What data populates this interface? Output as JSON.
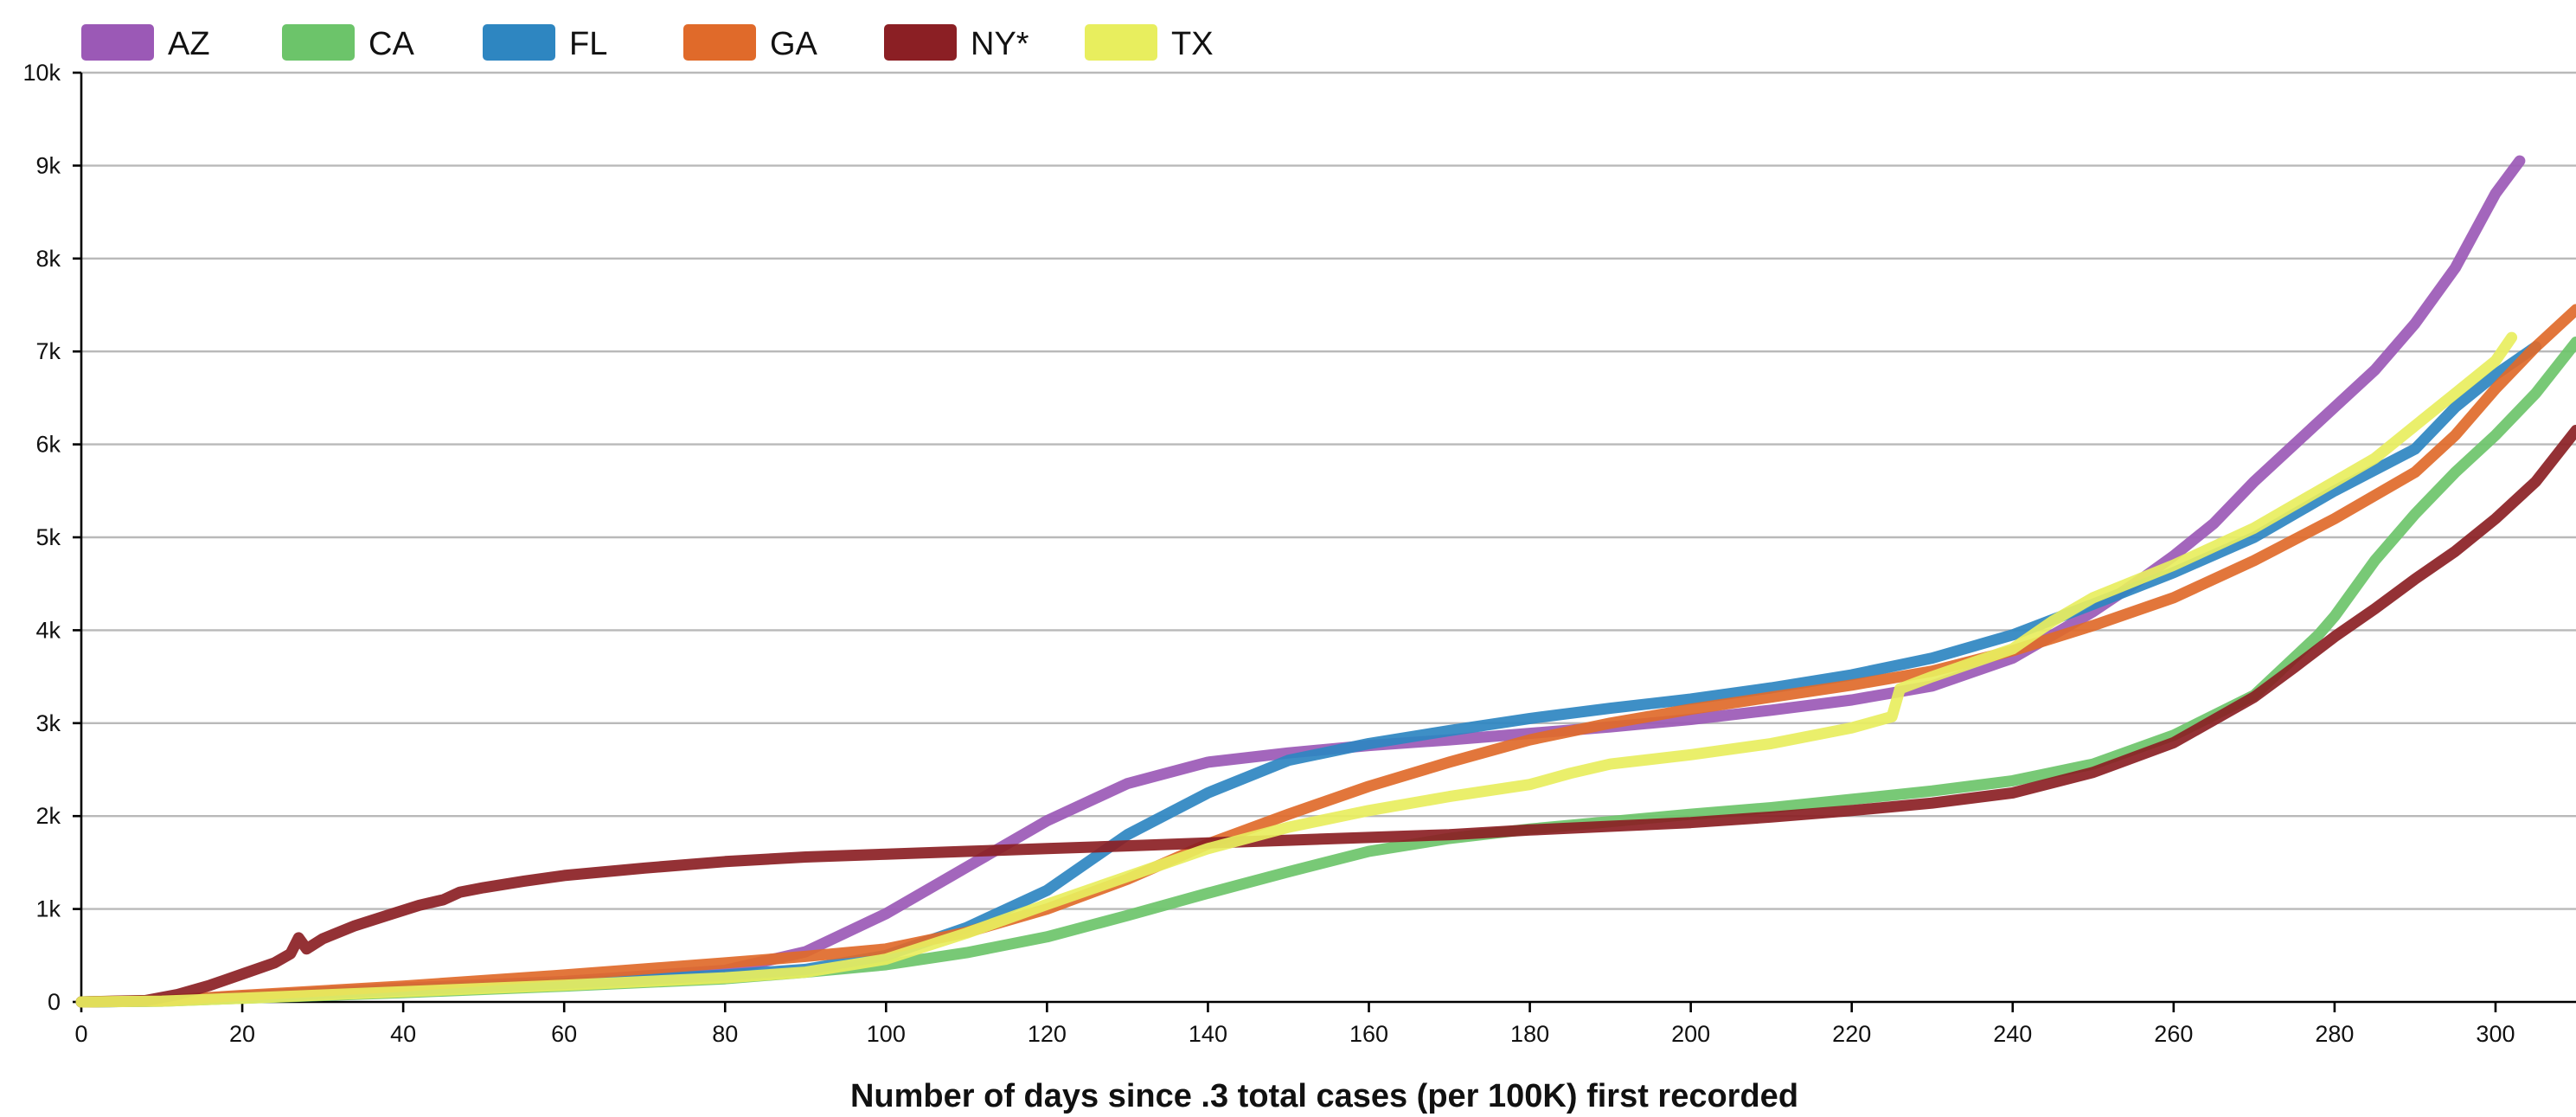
{
  "chart_data": {
    "type": "line",
    "title": "",
    "xlabel": "Number of days since .3 total cases (per 100K) first recorded",
    "ylabel": "",
    "xlim": [
      0,
      310
    ],
    "ylim": [
      0,
      10000
    ],
    "x_ticks": [
      0,
      20,
      40,
      60,
      80,
      100,
      120,
      140,
      160,
      180,
      200,
      220,
      240,
      260,
      280,
      300
    ],
    "y_ticks": [
      0,
      1000,
      2000,
      3000,
      4000,
      5000,
      6000,
      7000,
      8000,
      9000,
      10000
    ],
    "y_tick_labels": [
      "0",
      "1k",
      "2k",
      "3k",
      "4k",
      "5k",
      "6k",
      "7k",
      "8k",
      "9k",
      "10k"
    ],
    "grid": "horizontal",
    "legend_position": "top-left",
    "series": [
      {
        "name": "AZ",
        "color": "#9b59b6",
        "points": [
          [
            0,
            0
          ],
          [
            10,
            10
          ],
          [
            20,
            60
          ],
          [
            40,
            150
          ],
          [
            60,
            220
          ],
          [
            80,
            340
          ],
          [
            90,
            540
          ],
          [
            100,
            950
          ],
          [
            110,
            1450
          ],
          [
            120,
            1950
          ],
          [
            130,
            2350
          ],
          [
            140,
            2580
          ],
          [
            150,
            2680
          ],
          [
            160,
            2760
          ],
          [
            170,
            2820
          ],
          [
            180,
            2890
          ],
          [
            190,
            2960
          ],
          [
            200,
            3040
          ],
          [
            210,
            3140
          ],
          [
            220,
            3250
          ],
          [
            230,
            3400
          ],
          [
            240,
            3700
          ],
          [
            250,
            4200
          ],
          [
            256,
            4550
          ],
          [
            260,
            4800
          ],
          [
            265,
            5150
          ],
          [
            270,
            5600
          ],
          [
            275,
            6000
          ],
          [
            280,
            6400
          ],
          [
            285,
            6800
          ],
          [
            290,
            7300
          ],
          [
            295,
            7900
          ],
          [
            300,
            8700
          ],
          [
            303,
            9050
          ]
        ]
      },
      {
        "name": "CA",
        "color": "#6cc46a",
        "points": [
          [
            0,
            0
          ],
          [
            10,
            8
          ],
          [
            20,
            40
          ],
          [
            40,
            100
          ],
          [
            60,
            170
          ],
          [
            80,
            250
          ],
          [
            90,
            320
          ],
          [
            100,
            400
          ],
          [
            110,
            530
          ],
          [
            120,
            700
          ],
          [
            130,
            930
          ],
          [
            140,
            1170
          ],
          [
            150,
            1400
          ],
          [
            160,
            1620
          ],
          [
            170,
            1760
          ],
          [
            180,
            1860
          ],
          [
            190,
            1940
          ],
          [
            200,
            2020
          ],
          [
            210,
            2090
          ],
          [
            220,
            2180
          ],
          [
            230,
            2270
          ],
          [
            240,
            2380
          ],
          [
            250,
            2560
          ],
          [
            260,
            2870
          ],
          [
            270,
            3300
          ],
          [
            278,
            3950
          ],
          [
            280,
            4150
          ],
          [
            285,
            4750
          ],
          [
            290,
            5250
          ],
          [
            295,
            5700
          ],
          [
            300,
            6100
          ],
          [
            305,
            6550
          ],
          [
            310,
            7100
          ]
        ]
      },
      {
        "name": "FL",
        "color": "#2e86c1",
        "points": [
          [
            0,
            0
          ],
          [
            10,
            10
          ],
          [
            20,
            55
          ],
          [
            40,
            130
          ],
          [
            60,
            200
          ],
          [
            80,
            290
          ],
          [
            90,
            350
          ],
          [
            100,
            500
          ],
          [
            110,
            800
          ],
          [
            120,
            1200
          ],
          [
            130,
            1800
          ],
          [
            140,
            2250
          ],
          [
            150,
            2600
          ],
          [
            160,
            2780
          ],
          [
            170,
            2920
          ],
          [
            180,
            3050
          ],
          [
            190,
            3160
          ],
          [
            200,
            3260
          ],
          [
            210,
            3380
          ],
          [
            220,
            3520
          ],
          [
            230,
            3700
          ],
          [
            240,
            3950
          ],
          [
            250,
            4280
          ],
          [
            260,
            4620
          ],
          [
            270,
            5000
          ],
          [
            280,
            5500
          ],
          [
            290,
            5950
          ],
          [
            295,
            6400
          ],
          [
            300,
            6750
          ],
          [
            305,
            7050
          ]
        ]
      },
      {
        "name": "GA",
        "color": "#e06a2a",
        "points": [
          [
            0,
            0
          ],
          [
            10,
            15
          ],
          [
            20,
            70
          ],
          [
            40,
            170
          ],
          [
            60,
            290
          ],
          [
            80,
            420
          ],
          [
            90,
            490
          ],
          [
            100,
            570
          ],
          [
            110,
            750
          ],
          [
            120,
            1000
          ],
          [
            130,
            1320
          ],
          [
            140,
            1700
          ],
          [
            150,
            2020
          ],
          [
            160,
            2320
          ],
          [
            170,
            2580
          ],
          [
            180,
            2820
          ],
          [
            190,
            3000
          ],
          [
            200,
            3150
          ],
          [
            210,
            3280
          ],
          [
            220,
            3410
          ],
          [
            230,
            3560
          ],
          [
            240,
            3780
          ],
          [
            250,
            4050
          ],
          [
            260,
            4350
          ],
          [
            270,
            4750
          ],
          [
            280,
            5200
          ],
          [
            290,
            5700
          ],
          [
            295,
            6100
          ],
          [
            300,
            6600
          ],
          [
            305,
            7050
          ],
          [
            310,
            7450
          ]
        ]
      },
      {
        "name": "NY*",
        "color": "#8b1f24",
        "points": [
          [
            0,
            0
          ],
          [
            8,
            15
          ],
          [
            12,
            80
          ],
          [
            16,
            180
          ],
          [
            20,
            300
          ],
          [
            24,
            420
          ],
          [
            26,
            520
          ],
          [
            27,
            690
          ],
          [
            28,
            570
          ],
          [
            30,
            680
          ],
          [
            34,
            820
          ],
          [
            38,
            930
          ],
          [
            42,
            1040
          ],
          [
            45,
            1100
          ],
          [
            47,
            1180
          ],
          [
            50,
            1230
          ],
          [
            55,
            1300
          ],
          [
            60,
            1360
          ],
          [
            70,
            1440
          ],
          [
            80,
            1510
          ],
          [
            90,
            1560
          ],
          [
            100,
            1590
          ],
          [
            110,
            1620
          ],
          [
            120,
            1650
          ],
          [
            130,
            1680
          ],
          [
            140,
            1710
          ],
          [
            150,
            1740
          ],
          [
            160,
            1770
          ],
          [
            170,
            1800
          ],
          [
            180,
            1850
          ],
          [
            190,
            1890
          ],
          [
            200,
            1930
          ],
          [
            210,
            1990
          ],
          [
            220,
            2060
          ],
          [
            230,
            2140
          ],
          [
            240,
            2250
          ],
          [
            250,
            2470
          ],
          [
            260,
            2790
          ],
          [
            270,
            3280
          ],
          [
            275,
            3600
          ],
          [
            280,
            3930
          ],
          [
            285,
            4230
          ],
          [
            290,
            4550
          ],
          [
            295,
            4850
          ],
          [
            300,
            5200
          ],
          [
            305,
            5600
          ],
          [
            310,
            6150
          ]
        ]
      },
      {
        "name": "TX",
        "color": "#e8ee5e",
        "points": [
          [
            0,
            0
          ],
          [
            10,
            8
          ],
          [
            20,
            40
          ],
          [
            40,
            110
          ],
          [
            60,
            180
          ],
          [
            80,
            260
          ],
          [
            90,
            320
          ],
          [
            100,
            460
          ],
          [
            110,
            740
          ],
          [
            120,
            1050
          ],
          [
            130,
            1350
          ],
          [
            140,
            1650
          ],
          [
            150,
            1880
          ],
          [
            160,
            2060
          ],
          [
            170,
            2210
          ],
          [
            180,
            2340
          ],
          [
            185,
            2460
          ],
          [
            190,
            2560
          ],
          [
            200,
            2660
          ],
          [
            210,
            2780
          ],
          [
            220,
            2950
          ],
          [
            225,
            3070
          ],
          [
            226,
            3370
          ],
          [
            230,
            3500
          ],
          [
            240,
            3800
          ],
          [
            245,
            4100
          ],
          [
            250,
            4350
          ],
          [
            260,
            4700
          ],
          [
            270,
            5100
          ],
          [
            280,
            5600
          ],
          [
            285,
            5850
          ],
          [
            290,
            6200
          ],
          [
            295,
            6550
          ],
          [
            300,
            6900
          ],
          [
            302,
            7150
          ]
        ]
      }
    ]
  }
}
